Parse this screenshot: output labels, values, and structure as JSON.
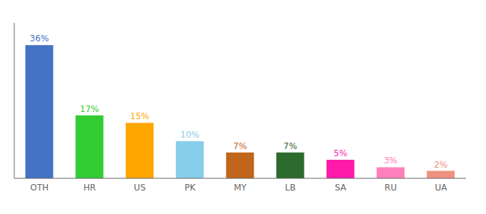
{
  "chart_data": {
    "type": "bar",
    "categories": [
      "OTH",
      "HR",
      "US",
      "PK",
      "MY",
      "LB",
      "SA",
      "RU",
      "UA"
    ],
    "values": [
      36,
      17,
      15,
      10,
      7,
      7,
      5,
      3,
      2
    ],
    "value_labels": [
      "36%",
      "17%",
      "15%",
      "10%",
      "7%",
      "7%",
      "5%",
      "3%",
      "2%"
    ],
    "colors": [
      "#4472c4",
      "#33cc33",
      "#ffa500",
      "#87ceeb",
      "#c0651a",
      "#2d6a2d",
      "#ff1aaa",
      "#ff80bb",
      "#f09080"
    ],
    "ylim": [
      0,
      42
    ],
    "data_labels": true,
    "tick_labels": "x",
    "grid": false
  }
}
